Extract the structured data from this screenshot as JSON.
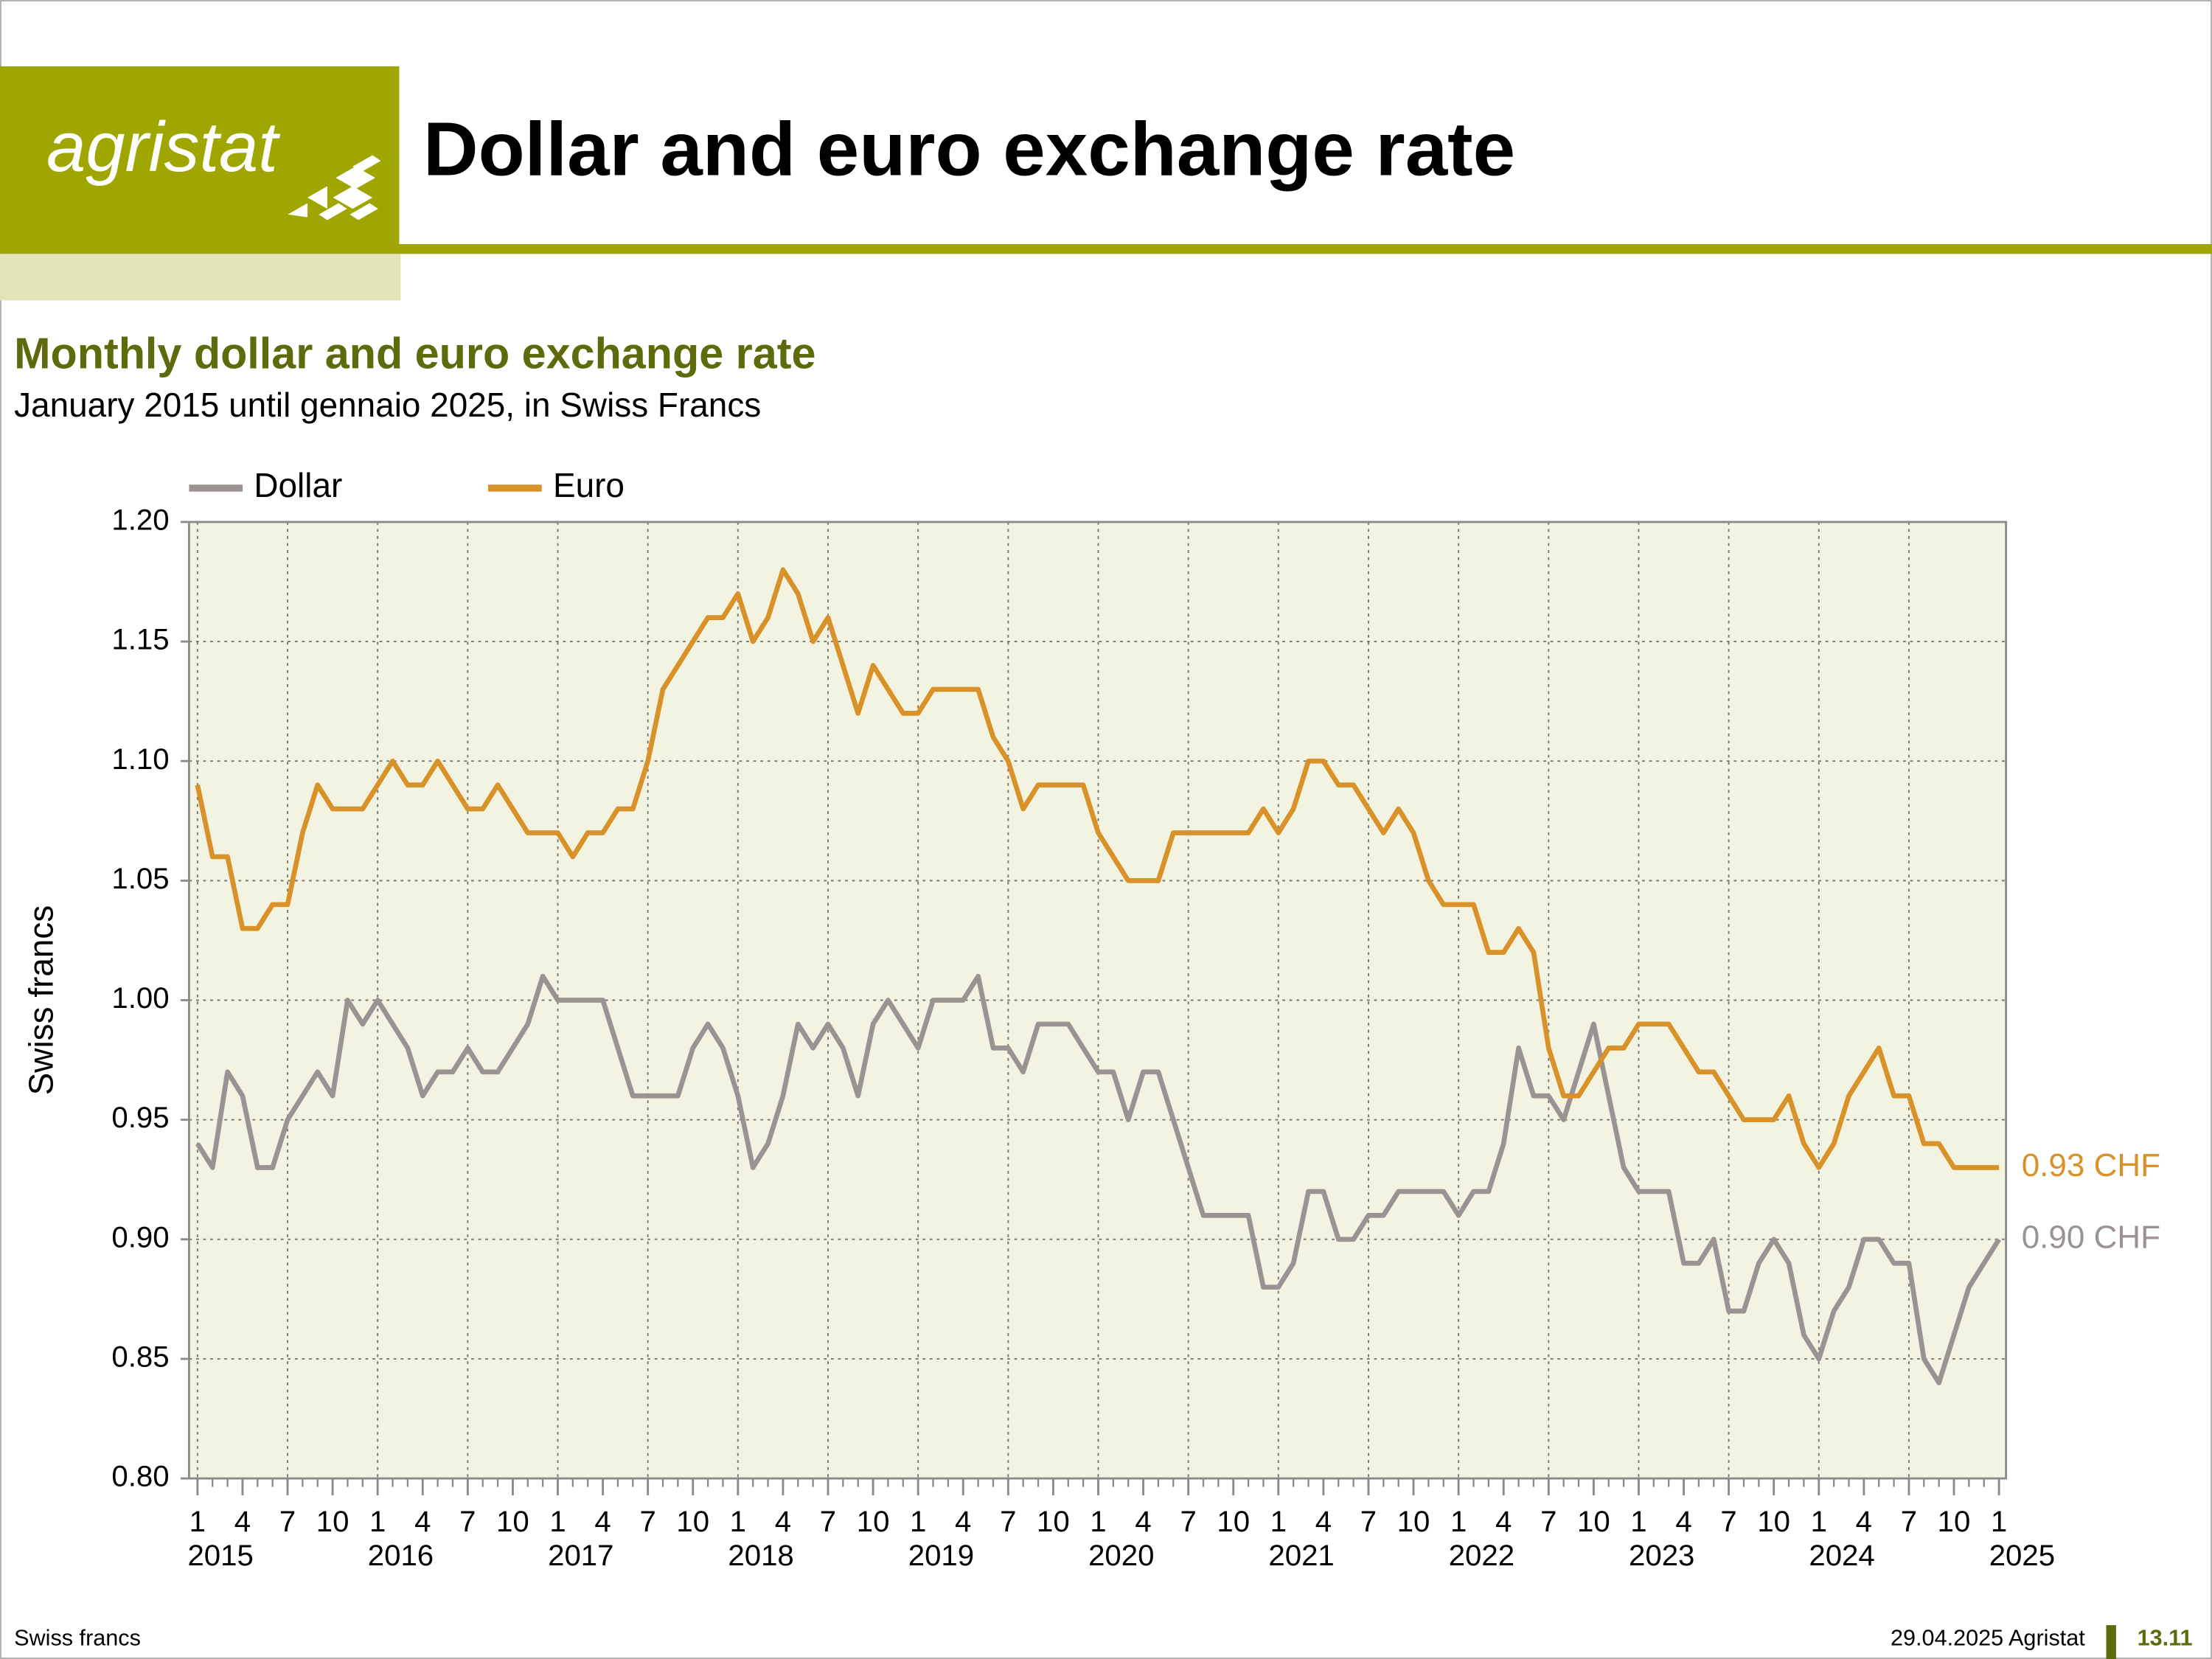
{
  "header": {
    "logo": "agristat",
    "title": "Dollar and euro exchange rate"
  },
  "footer": {
    "left": "Swiss francs",
    "right": "29.04.2025 Agristat",
    "page": "13.11"
  },
  "chart_data": {
    "type": "line",
    "title": "Monthly dollar and euro exchange rate",
    "subtitle": "January 2015 until gennaio 2025, in Swiss Francs",
    "ylabel": "Swiss francs",
    "x": [
      "2015-01",
      "2015-02",
      "2015-03",
      "2015-04",
      "2015-05",
      "2015-06",
      "2015-07",
      "2015-08",
      "2015-09",
      "2015-10",
      "2015-11",
      "2015-12",
      "2016-01",
      "2016-02",
      "2016-03",
      "2016-04",
      "2016-05",
      "2016-06",
      "2016-07",
      "2016-08",
      "2016-09",
      "2016-10",
      "2016-11",
      "2016-12",
      "2017-01",
      "2017-02",
      "2017-03",
      "2017-04",
      "2017-05",
      "2017-06",
      "2017-07",
      "2017-08",
      "2017-09",
      "2017-10",
      "2017-11",
      "2017-12",
      "2018-01",
      "2018-02",
      "2018-03",
      "2018-04",
      "2018-05",
      "2018-06",
      "2018-07",
      "2018-08",
      "2018-09",
      "2018-10",
      "2018-11",
      "2018-12",
      "2019-01",
      "2019-02",
      "2019-03",
      "2019-04",
      "2019-05",
      "2019-06",
      "2019-07",
      "2019-08",
      "2019-09",
      "2019-10",
      "2019-11",
      "2019-12",
      "2020-01",
      "2020-02",
      "2020-03",
      "2020-04",
      "2020-05",
      "2020-06",
      "2020-07",
      "2020-08",
      "2020-09",
      "2020-10",
      "2020-11",
      "2020-12",
      "2021-01",
      "2021-02",
      "2021-03",
      "2021-04",
      "2021-05",
      "2021-06",
      "2021-07",
      "2021-08",
      "2021-09",
      "2021-10",
      "2021-11",
      "2021-12",
      "2022-01",
      "2022-02",
      "2022-03",
      "2022-04",
      "2022-05",
      "2022-06",
      "2022-07",
      "2022-08",
      "2022-09",
      "2022-10",
      "2022-11",
      "2022-12",
      "2023-01",
      "2023-02",
      "2023-03",
      "2023-04",
      "2023-05",
      "2023-06",
      "2023-07",
      "2023-08",
      "2023-09",
      "2023-10",
      "2023-11",
      "2023-12",
      "2024-01",
      "2024-02",
      "2024-03",
      "2024-04",
      "2024-05",
      "2024-06",
      "2024-07",
      "2024-08",
      "2024-09",
      "2024-10",
      "2024-11",
      "2024-12",
      "2025-01"
    ],
    "series": [
      {
        "name": "Dollar",
        "color": "#9b9391",
        "values": [
          0.94,
          0.93,
          0.97,
          0.96,
          0.93,
          0.93,
          0.95,
          0.96,
          0.97,
          0.96,
          1.0,
          0.99,
          1.0,
          0.99,
          0.98,
          0.96,
          0.97,
          0.97,
          0.98,
          0.97,
          0.97,
          0.98,
          0.99,
          1.01,
          1.0,
          1.0,
          1.0,
          1.0,
          0.98,
          0.96,
          0.96,
          0.96,
          0.96,
          0.98,
          0.99,
          0.98,
          0.96,
          0.93,
          0.94,
          0.96,
          0.99,
          0.98,
          0.99,
          0.98,
          0.96,
          0.99,
          1.0,
          0.99,
          0.98,
          1.0,
          1.0,
          1.0,
          1.01,
          0.98,
          0.98,
          0.97,
          0.99,
          0.99,
          0.99,
          0.98,
          0.97,
          0.97,
          0.95,
          0.97,
          0.97,
          0.95,
          0.93,
          0.91,
          0.91,
          0.91,
          0.91,
          0.88,
          0.88,
          0.89,
          0.92,
          0.92,
          0.9,
          0.9,
          0.91,
          0.91,
          0.92,
          0.92,
          0.92,
          0.92,
          0.91,
          0.92,
          0.92,
          0.94,
          0.98,
          0.96,
          0.96,
          0.95,
          0.97,
          0.99,
          0.96,
          0.93,
          0.92,
          0.92,
          0.92,
          0.89,
          0.89,
          0.9,
          0.87,
          0.87,
          0.89,
          0.9,
          0.89,
          0.86,
          0.85,
          0.87,
          0.88,
          0.9,
          0.9,
          0.89,
          0.89,
          0.85,
          0.84,
          0.86,
          0.88,
          0.89,
          0.9
        ],
        "value_labels": [
          null,
          null,
          null,
          null,
          null,
          null,
          null,
          null,
          null,
          null,
          null,
          null,
          null,
          null,
          null,
          null,
          null,
          null,
          null,
          null,
          null,
          null,
          null,
          null,
          null,
          null,
          null,
          null,
          null,
          null,
          null,
          null,
          null,
          null,
          null,
          null,
          null,
          null,
          null,
          null,
          null,
          null,
          null,
          null,
          null,
          null,
          null,
          null,
          null,
          null,
          null,
          null,
          null,
          null,
          null,
          null,
          null,
          null,
          null,
          null,
          null,
          null,
          null,
          null,
          null,
          null,
          null,
          null,
          null,
          null,
          null,
          null,
          null,
          null,
          null,
          null,
          null,
          null,
          null,
          null,
          null,
          null,
          null,
          null,
          null,
          null,
          null,
          null,
          null,
          null,
          null,
          null,
          null,
          null,
          null,
          null,
          null,
          null,
          null,
          null,
          null,
          null,
          null,
          null,
          null,
          null,
          null,
          null,
          null,
          null,
          null,
          null,
          null,
          null,
          null,
          null,
          null,
          null,
          null,
          null,
          "0.90 CHF"
        ]
      },
      {
        "name": "Euro",
        "color": "#d9912a",
        "values": [
          1.09,
          1.06,
          1.06,
          1.03,
          1.03,
          1.04,
          1.04,
          1.07,
          1.09,
          1.08,
          1.08,
          1.08,
          1.09,
          1.1,
          1.09,
          1.09,
          1.1,
          1.09,
          1.08,
          1.08,
          1.09,
          1.08,
          1.07,
          1.07,
          1.07,
          1.06,
          1.07,
          1.07,
          1.08,
          1.08,
          1.1,
          1.13,
          1.14,
          1.15,
          1.16,
          1.16,
          1.17,
          1.15,
          1.16,
          1.18,
          1.17,
          1.15,
          1.16,
          1.14,
          1.12,
          1.14,
          1.13,
          1.12,
          1.12,
          1.13,
          1.13,
          1.13,
          1.13,
          1.11,
          1.1,
          1.08,
          1.09,
          1.09,
          1.09,
          1.09,
          1.07,
          1.06,
          1.05,
          1.05,
          1.05,
          1.07,
          1.07,
          1.07,
          1.07,
          1.07,
          1.07,
          1.08,
          1.07,
          1.08,
          1.1,
          1.1,
          1.09,
          1.09,
          1.08,
          1.07,
          1.08,
          1.07,
          1.05,
          1.04,
          1.04,
          1.04,
          1.02,
          1.02,
          1.03,
          1.02,
          0.98,
          0.96,
          0.96,
          0.97,
          0.98,
          0.98,
          0.99,
          0.99,
          0.99,
          0.98,
          0.97,
          0.97,
          0.96,
          0.95,
          0.95,
          0.95,
          0.96,
          0.94,
          0.93,
          0.94,
          0.96,
          0.97,
          0.98,
          0.96,
          0.96,
          0.94,
          0.94,
          0.93,
          0.93,
          0.93,
          0.93
        ],
        "value_labels": [
          null,
          null,
          null,
          null,
          null,
          null,
          null,
          null,
          null,
          null,
          null,
          null,
          null,
          null,
          null,
          null,
          null,
          null,
          null,
          null,
          null,
          null,
          null,
          null,
          null,
          null,
          null,
          null,
          null,
          null,
          null,
          null,
          null,
          null,
          null,
          null,
          null,
          null,
          null,
          null,
          null,
          null,
          null,
          null,
          null,
          null,
          null,
          null,
          null,
          null,
          null,
          null,
          null,
          null,
          null,
          null,
          null,
          null,
          null,
          null,
          null,
          null,
          null,
          null,
          null,
          null,
          null,
          null,
          null,
          null,
          null,
          null,
          null,
          null,
          null,
          null,
          null,
          null,
          null,
          null,
          null,
          null,
          null,
          null,
          null,
          null,
          null,
          null,
          null,
          null,
          null,
          null,
          null,
          null,
          null,
          null,
          null,
          null,
          null,
          null,
          null,
          null,
          null,
          null,
          null,
          null,
          null,
          null,
          null,
          null,
          null,
          null,
          null,
          null,
          null,
          null,
          null,
          null,
          null,
          null,
          "0.93 CHF"
        ]
      }
    ],
    "ylim": [
      0.8,
      1.2
    ],
    "yticks": [
      {
        "value": 0.8,
        "label": "0.80"
      },
      {
        "value": 0.85,
        "label": "0.85"
      },
      {
        "value": 0.9,
        "label": "0.90"
      },
      {
        "value": 0.95,
        "label": "0.95"
      },
      {
        "value": 1.0,
        "label": "1.00"
      },
      {
        "value": 1.05,
        "label": "1.05"
      },
      {
        "value": 1.1,
        "label": "1.10"
      },
      {
        "value": 1.15,
        "label": "1.15"
      },
      {
        "value": 1.2,
        "label": "1.20"
      }
    ],
    "xticks": [
      {
        "value": "2015-01",
        "label": "1"
      },
      {
        "value": "2015-04",
        "label": "4"
      },
      {
        "value": "2015-07",
        "label": "7"
      },
      {
        "value": "2015-10",
        "label": "10"
      },
      {
        "value": "2016-01",
        "label": "1"
      },
      {
        "value": "2016-04",
        "label": "4"
      },
      {
        "value": "2016-07",
        "label": "7"
      },
      {
        "value": "2016-10",
        "label": "10"
      },
      {
        "value": "2017-01",
        "label": "1"
      },
      {
        "value": "2017-04",
        "label": "4"
      },
      {
        "value": "2017-07",
        "label": "7"
      },
      {
        "value": "2017-10",
        "label": "10"
      },
      {
        "value": "2018-01",
        "label": "1"
      },
      {
        "value": "2018-04",
        "label": "4"
      },
      {
        "value": "2018-07",
        "label": "7"
      },
      {
        "value": "2018-10",
        "label": "10"
      },
      {
        "value": "2019-01",
        "label": "1"
      },
      {
        "value": "2019-04",
        "label": "4"
      },
      {
        "value": "2019-07",
        "label": "7"
      },
      {
        "value": "2019-10",
        "label": "10"
      },
      {
        "value": "2020-01",
        "label": "1"
      },
      {
        "value": "2020-04",
        "label": "4"
      },
      {
        "value": "2020-07",
        "label": "7"
      },
      {
        "value": "2020-10",
        "label": "10"
      },
      {
        "value": "2021-01",
        "label": "1"
      },
      {
        "value": "2021-04",
        "label": "4"
      },
      {
        "value": "2021-07",
        "label": "7"
      },
      {
        "value": "2021-10",
        "label": "10"
      },
      {
        "value": "2022-01",
        "label": "1"
      },
      {
        "value": "2022-04",
        "label": "4"
      },
      {
        "value": "2022-07",
        "label": "7"
      },
      {
        "value": "2022-10",
        "label": "10"
      },
      {
        "value": "2023-01",
        "label": "1"
      },
      {
        "value": "2023-04",
        "label": "4"
      },
      {
        "value": "2023-07",
        "label": "7"
      },
      {
        "value": "2023-10",
        "label": "10"
      },
      {
        "value": "2024-01",
        "label": "1"
      },
      {
        "value": "2024-04",
        "label": "4"
      },
      {
        "value": "2024-07",
        "label": "7"
      },
      {
        "value": "2024-10",
        "label": "10"
      },
      {
        "value": "2025-01",
        "label": "1"
      }
    ],
    "year_labels": [
      {
        "value": "2015-01",
        "label": "2015"
      },
      {
        "value": "2016-01",
        "label": "2016"
      },
      {
        "value": "2017-01",
        "label": "2017"
      },
      {
        "value": "2018-01",
        "label": "2018"
      },
      {
        "value": "2019-01",
        "label": "2019"
      },
      {
        "value": "2020-01",
        "label": "2020"
      },
      {
        "value": "2021-01",
        "label": "2021"
      },
      {
        "value": "2022-01",
        "label": "2022"
      },
      {
        "value": "2023-01",
        "label": "2023"
      },
      {
        "value": "2024-01",
        "label": "2024"
      },
      {
        "value": "2025-01",
        "label": "2025"
      }
    ],
    "grid": true,
    "legend": "top-left"
  }
}
